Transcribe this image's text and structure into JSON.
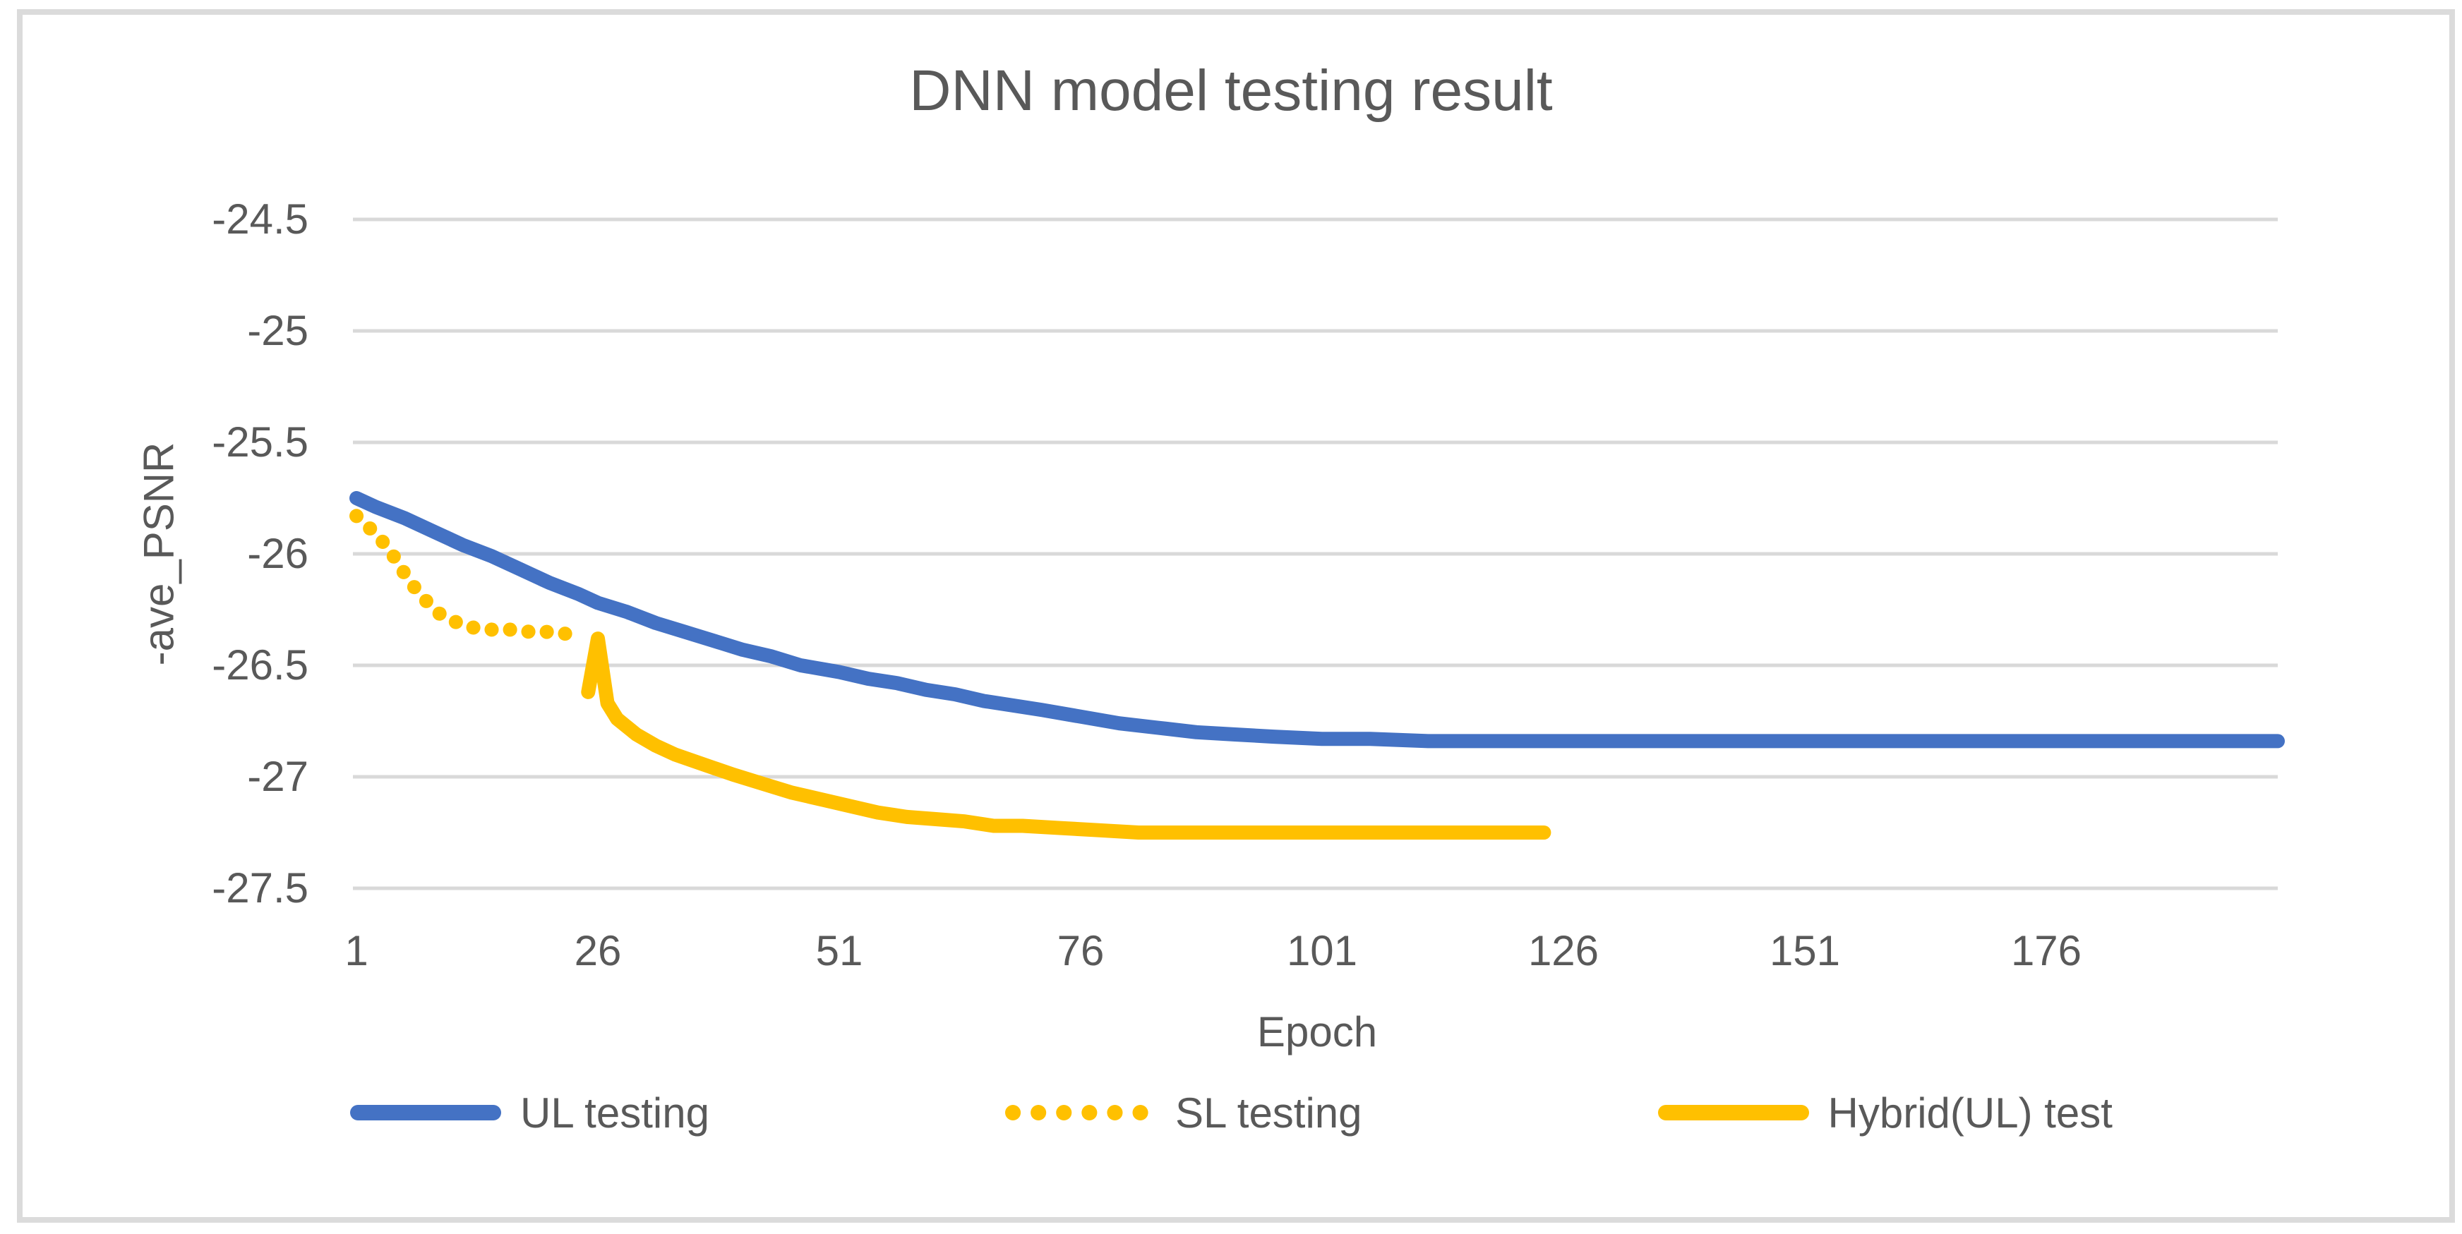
{
  "chart_data": {
    "type": "line",
    "title": "DNN model testing result",
    "xlabel": "Epoch",
    "ylabel": "-ave_PSNR",
    "xlim": [
      1,
      200
    ],
    "ylim": [
      -27.5,
      -24.5
    ],
    "grid": "horizontal",
    "legend_position": "bottom",
    "x_ticks": [
      1,
      26,
      51,
      76,
      101,
      126,
      151,
      176
    ],
    "x_tick_labels": [
      "1",
      "26",
      "51",
      "76",
      "101",
      "126",
      "151",
      "176"
    ],
    "y_ticks": [
      -24.5,
      -25,
      -25.5,
      -26,
      -26.5,
      -27,
      -27.5
    ],
    "y_tick_labels": [
      "-24.5",
      "-25",
      "-25.5",
      "-26",
      "-26.5",
      "-27",
      "-27.5"
    ],
    "palette": {
      "gridline": "#D9D9D9",
      "text": "#595959",
      "border": "#DBDBDB",
      "background": "#FFFFFF"
    },
    "series": [
      {
        "name": "UL testing",
        "color": "#4472C4",
        "style": "solid",
        "points": [
          [
            1,
            -25.75
          ],
          [
            3,
            -25.79
          ],
          [
            6,
            -25.84
          ],
          [
            9,
            -25.9
          ],
          [
            12,
            -25.96
          ],
          [
            15,
            -26.01
          ],
          [
            18,
            -26.07
          ],
          [
            21,
            -26.13
          ],
          [
            24,
            -26.18
          ],
          [
            26,
            -26.22
          ],
          [
            29,
            -26.26
          ],
          [
            32,
            -26.31
          ],
          [
            35,
            -26.35
          ],
          [
            38,
            -26.39
          ],
          [
            41,
            -26.43
          ],
          [
            44,
            -26.46
          ],
          [
            47,
            -26.5
          ],
          [
            51,
            -26.53
          ],
          [
            54,
            -26.56
          ],
          [
            57,
            -26.58
          ],
          [
            60,
            -26.61
          ],
          [
            63,
            -26.63
          ],
          [
            66,
            -26.66
          ],
          [
            69,
            -26.68
          ],
          [
            72,
            -26.7
          ],
          [
            76,
            -26.73
          ],
          [
            80,
            -26.76
          ],
          [
            84,
            -26.78
          ],
          [
            88,
            -26.8
          ],
          [
            92,
            -26.81
          ],
          [
            96,
            -26.82
          ],
          [
            101,
            -26.83
          ],
          [
            106,
            -26.83
          ],
          [
            112,
            -26.84
          ],
          [
            120,
            -26.84
          ],
          [
            130,
            -26.84
          ],
          [
            145,
            -26.84
          ],
          [
            160,
            -26.84
          ],
          [
            175,
            -26.84
          ],
          [
            190,
            -26.84
          ],
          [
            200,
            -26.84
          ]
        ]
      },
      {
        "name": "SL testing",
        "color": "#FFC000",
        "style": "dotted",
        "points": [
          [
            1,
            -25.83
          ],
          [
            2,
            -25.87
          ],
          [
            3,
            -25.91
          ],
          [
            4,
            -25.96
          ],
          [
            5,
            -26.02
          ],
          [
            6,
            -26.09
          ],
          [
            7,
            -26.15
          ],
          [
            8,
            -26.2
          ],
          [
            9,
            -26.25
          ],
          [
            10,
            -26.28
          ],
          [
            11,
            -26.3
          ],
          [
            12,
            -26.32
          ],
          [
            13,
            -26.33
          ],
          [
            15,
            -26.34
          ],
          [
            17,
            -26.34
          ],
          [
            19,
            -26.35
          ],
          [
            21,
            -26.35
          ],
          [
            23,
            -26.36
          ],
          [
            24,
            -26.36
          ]
        ]
      },
      {
        "name": "Hybrid(UL) test",
        "color": "#FFC000",
        "style": "solid",
        "points": [
          [
            25,
            -26.62
          ],
          [
            26,
            -26.38
          ],
          [
            27,
            -26.67
          ],
          [
            28,
            -26.74
          ],
          [
            30,
            -26.81
          ],
          [
            32,
            -26.86
          ],
          [
            34,
            -26.9
          ],
          [
            36,
            -26.93
          ],
          [
            38,
            -26.96
          ],
          [
            40,
            -26.99
          ],
          [
            43,
            -27.03
          ],
          [
            46,
            -27.07
          ],
          [
            49,
            -27.1
          ],
          [
            52,
            -27.13
          ],
          [
            55,
            -27.16
          ],
          [
            58,
            -27.18
          ],
          [
            61,
            -27.19
          ],
          [
            64,
            -27.2
          ],
          [
            67,
            -27.22
          ],
          [
            70,
            -27.22
          ],
          [
            74,
            -27.23
          ],
          [
            78,
            -27.24
          ],
          [
            82,
            -27.25
          ],
          [
            86,
            -27.25
          ],
          [
            95,
            -27.25
          ],
          [
            105,
            -27.25
          ],
          [
            115,
            -27.25
          ],
          [
            124,
            -27.25
          ]
        ]
      }
    ]
  }
}
